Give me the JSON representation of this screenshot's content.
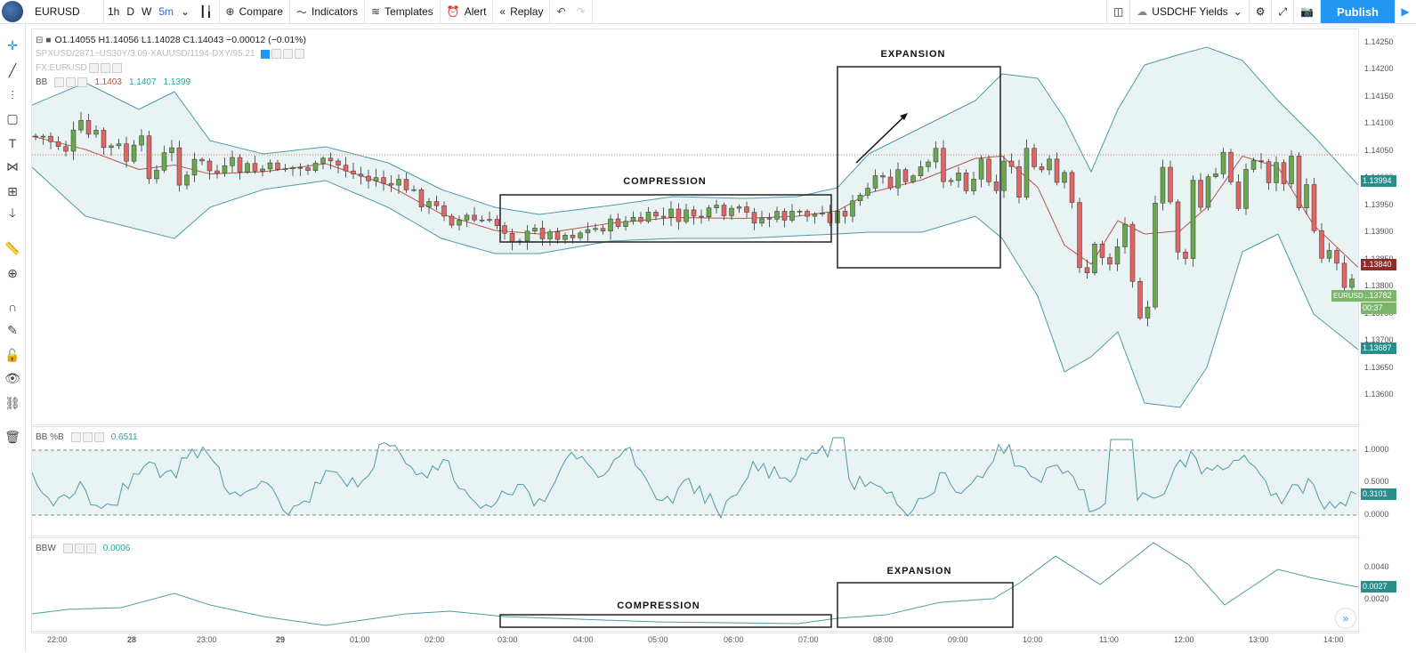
{
  "toolbar": {
    "symbol": "EURUSD",
    "intervals": [
      "1h",
      "D",
      "W",
      "5m"
    ],
    "compare": "Compare",
    "indicators": "Indicators",
    "templates": "Templates",
    "alert": "Alert",
    "replay": "Replay",
    "layout_name": "USDCHF Yields",
    "publish": "Publish"
  },
  "main_legend": {
    "ohlc": "O1.14055  H1.14056  L1.14028  C1.14043  −0.00012 (−0.01%)",
    "line2": "SPXUSD/2871÷US30Y/3.09-XAUUSD/1194-DXY/95.21",
    "line3": "FX:EURUSD",
    "bb_name": "BB",
    "bb_vals": [
      "1.1403",
      "1.1407",
      "1.1399"
    ]
  },
  "price_axis": {
    "ticks": [
      "1.14250",
      "1.14200",
      "1.14150",
      "1.14100",
      "1.14050",
      "1.14000",
      "1.13950",
      "1.13900",
      "1.13850",
      "1.13800",
      "1.13750",
      "1.13700",
      "1.13650",
      "1.13600"
    ],
    "tags": {
      "bb_upper": "1.13994",
      "bb_mid": "1.13840",
      "symbol_tag": "EURUSD",
      "last_price": "1.13782",
      "countdown": "00:37",
      "bb_lower": "1.13687"
    }
  },
  "annotations": {
    "expansion_top": "EXPANSION",
    "compression_top": "COMPRESSION",
    "expansion_bottom": "EXPANSION",
    "compression_bottom": "COMPRESSION"
  },
  "pane_bbp": {
    "name": "BB %B",
    "value": "0.6511",
    "ticks": [
      "1.0000",
      "0.5000",
      "0.0000"
    ],
    "tag": "0.3101"
  },
  "pane_bbw": {
    "name": "BBW",
    "value": "0.0006",
    "ticks": [
      "0.0040",
      "0.0020"
    ],
    "tag": "0.0027"
  },
  "time_axis": [
    "22:00",
    "28",
    "23:00",
    "29",
    "01:00",
    "02:00",
    "03:00",
    "04:00",
    "05:00",
    "06:00",
    "07:00",
    "08:00",
    "09:00",
    "10:00",
    "11:00",
    "12:00",
    "13:00",
    "14:00"
  ],
  "colors": {
    "up": "#6aa84f",
    "down": "#e06666",
    "band": "#4a9ca8",
    "basis": "#b5554d",
    "band_fill": "#e9f3f3",
    "price_line": "#e07a4a",
    "accent": "#2196f3"
  }
}
